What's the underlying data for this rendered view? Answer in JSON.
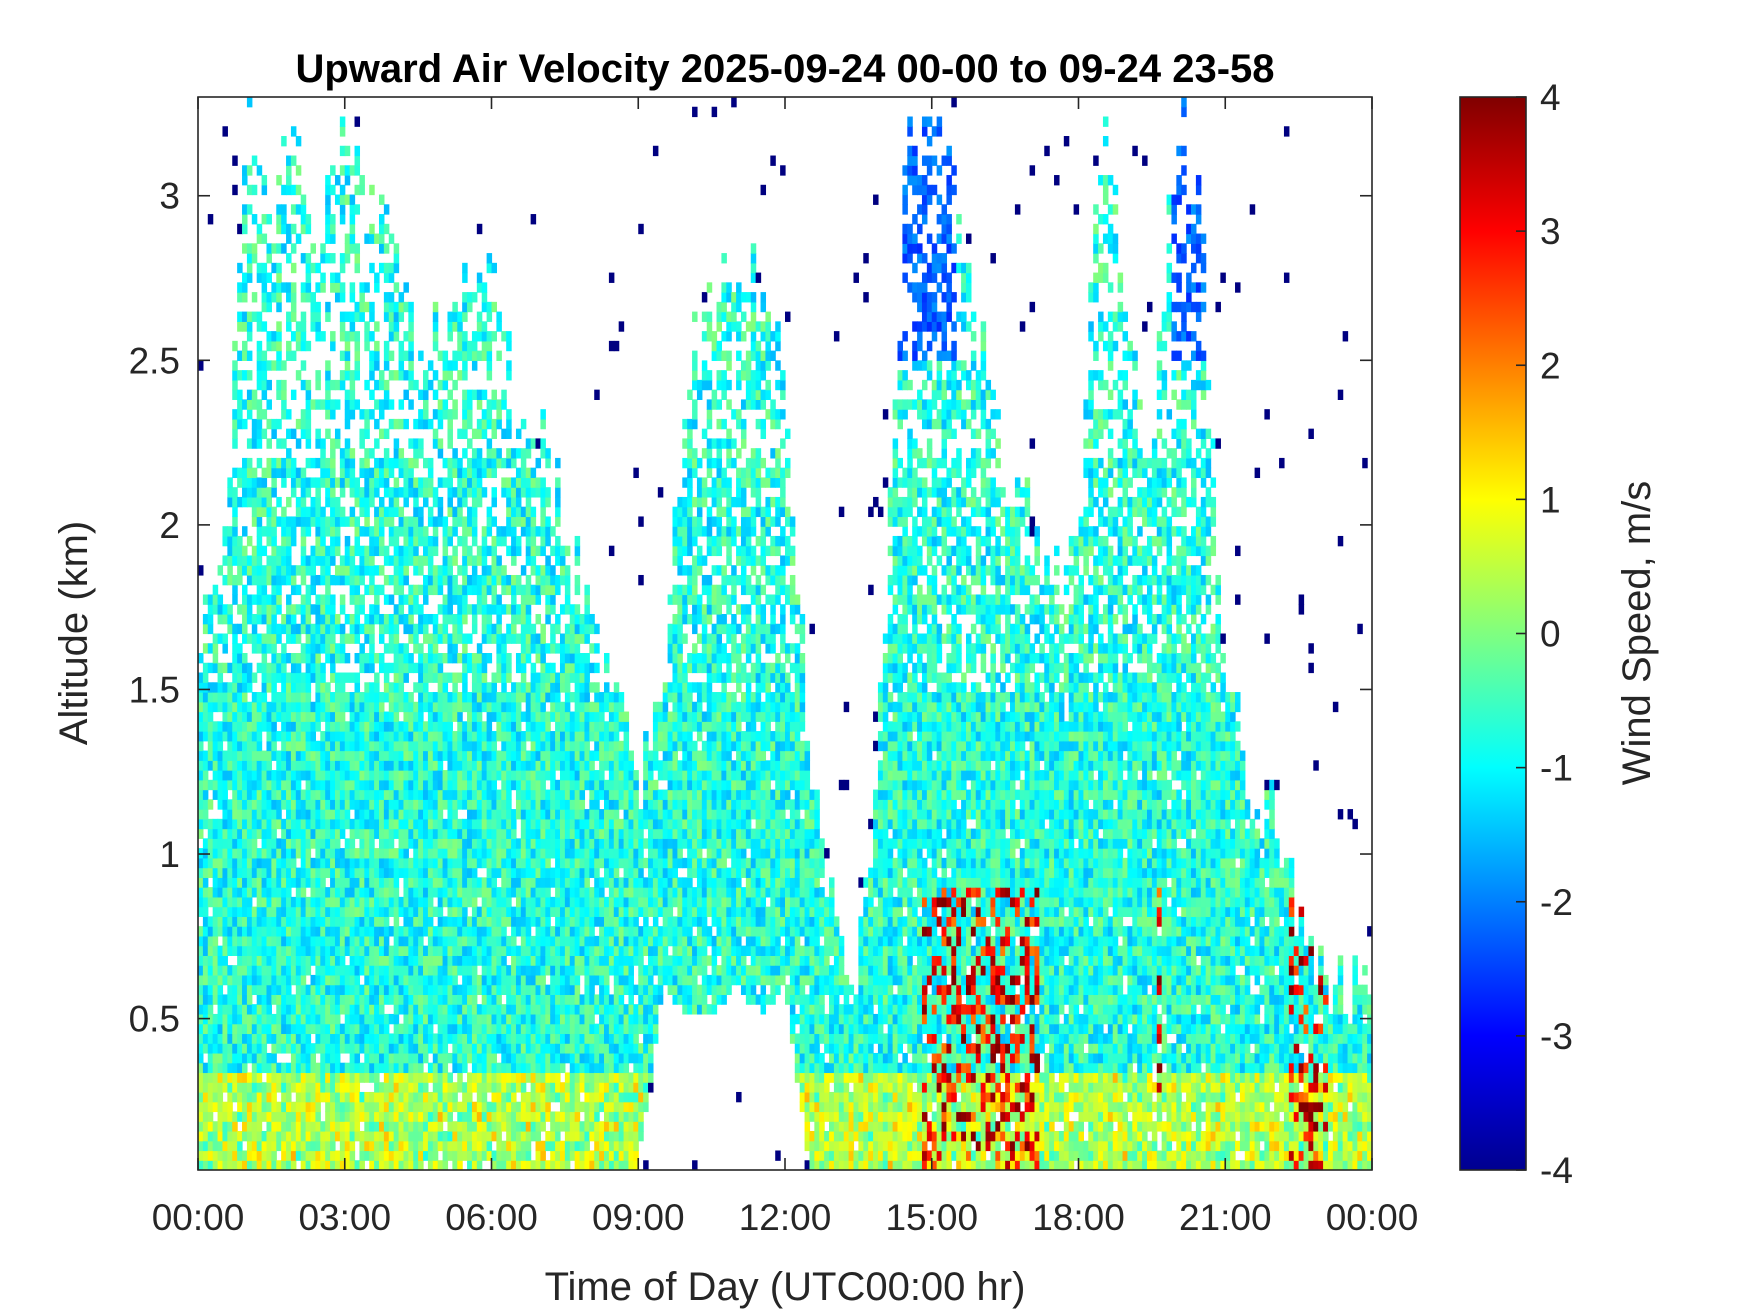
{
  "chart_data": {
    "type": "heatmap",
    "title": "Upward Air Velocity 2025-09-24 00-00 to 09-24 23-58",
    "xlabel": "Time of Day (UTC00:00 hr)",
    "ylabel": "Altitude (km)",
    "colorbar_label": "Wind Speed, m/s",
    "xlim": [
      0,
      24
    ],
    "ylim": [
      0.04,
      3.3
    ],
    "clim": [
      -4,
      4
    ],
    "colormap": "jet",
    "x_ticks": [
      0,
      3,
      6,
      9,
      12,
      15,
      18,
      21,
      24
    ],
    "x_tick_labels": [
      "00:00",
      "03:00",
      "06:00",
      "09:00",
      "12:00",
      "15:00",
      "18:00",
      "21:00",
      "00:00"
    ],
    "y_ticks": [
      0.5,
      1,
      1.5,
      2,
      2.5,
      3
    ],
    "y_tick_labels": [
      "0.5",
      "1",
      "1.5",
      "2",
      "2.5",
      "3"
    ],
    "colorbar_ticks": [
      -4,
      -3,
      -2,
      -1,
      0,
      1,
      2,
      3,
      4
    ],
    "colorbar_tick_labels": [
      "-4",
      "-3",
      "-2",
      "-1",
      "0",
      "1",
      "2",
      "3",
      "4"
    ],
    "grid": false,
    "cloud_top_profile": {
      "time_hr": [
        0,
        0.5,
        1,
        1.5,
        2,
        2.5,
        3,
        3.5,
        4,
        4.5,
        5,
        5.5,
        6,
        6.5,
        7,
        7.5,
        8,
        8.5,
        9,
        9.5,
        10,
        10.5,
        11,
        11.5,
        12,
        12.5,
        13,
        13.5,
        14,
        14.5,
        15,
        15.5,
        16,
        16.5,
        17,
        17.5,
        18,
        18.5,
        19,
        19.5,
        20,
        20.5,
        21,
        21.5,
        22,
        22.5,
        23,
        23.5,
        24
      ],
      "top_km": [
        1.6,
        1.8,
        3.3,
        3.0,
        3.1,
        2.9,
        3.3,
        3.0,
        2.9,
        2.5,
        2.6,
        2.7,
        2.9,
        2.4,
        2.3,
        2.0,
        1.7,
        1.5,
        1.2,
        1.6,
        2.5,
        2.7,
        2.8,
        2.75,
        2.5,
        1.3,
        0.8,
        0.6,
        1.5,
        3.3,
        3.3,
        3.0,
        2.6,
        2.2,
        2.0,
        1.8,
        2.0,
        3.3,
        2.6,
        2.2,
        3.3,
        2.9,
        1.6,
        1.2,
        1.1,
        0.8,
        0.65,
        0.6,
        0.55
      ],
      "base_km": [
        0.04,
        0.04,
        0.04,
        0.04,
        0.04,
        0.04,
        0.04,
        0.04,
        0.04,
        0.04,
        0.04,
        0.04,
        0.04,
        0.04,
        0.04,
        0.04,
        0.04,
        0.04,
        0.04,
        0.6,
        0.5,
        0.5,
        0.6,
        0.5,
        0.6,
        0.04,
        0.04,
        0.04,
        0.04,
        0.04,
        0.04,
        0.04,
        0.04,
        0.04,
        0.04,
        0.04,
        0.04,
        0.04,
        0.04,
        0.04,
        0.04,
        0.04,
        0.04,
        0.04,
        0.04,
        0.04,
        0.04,
        0.04,
        0.04
      ]
    }
  }
}
